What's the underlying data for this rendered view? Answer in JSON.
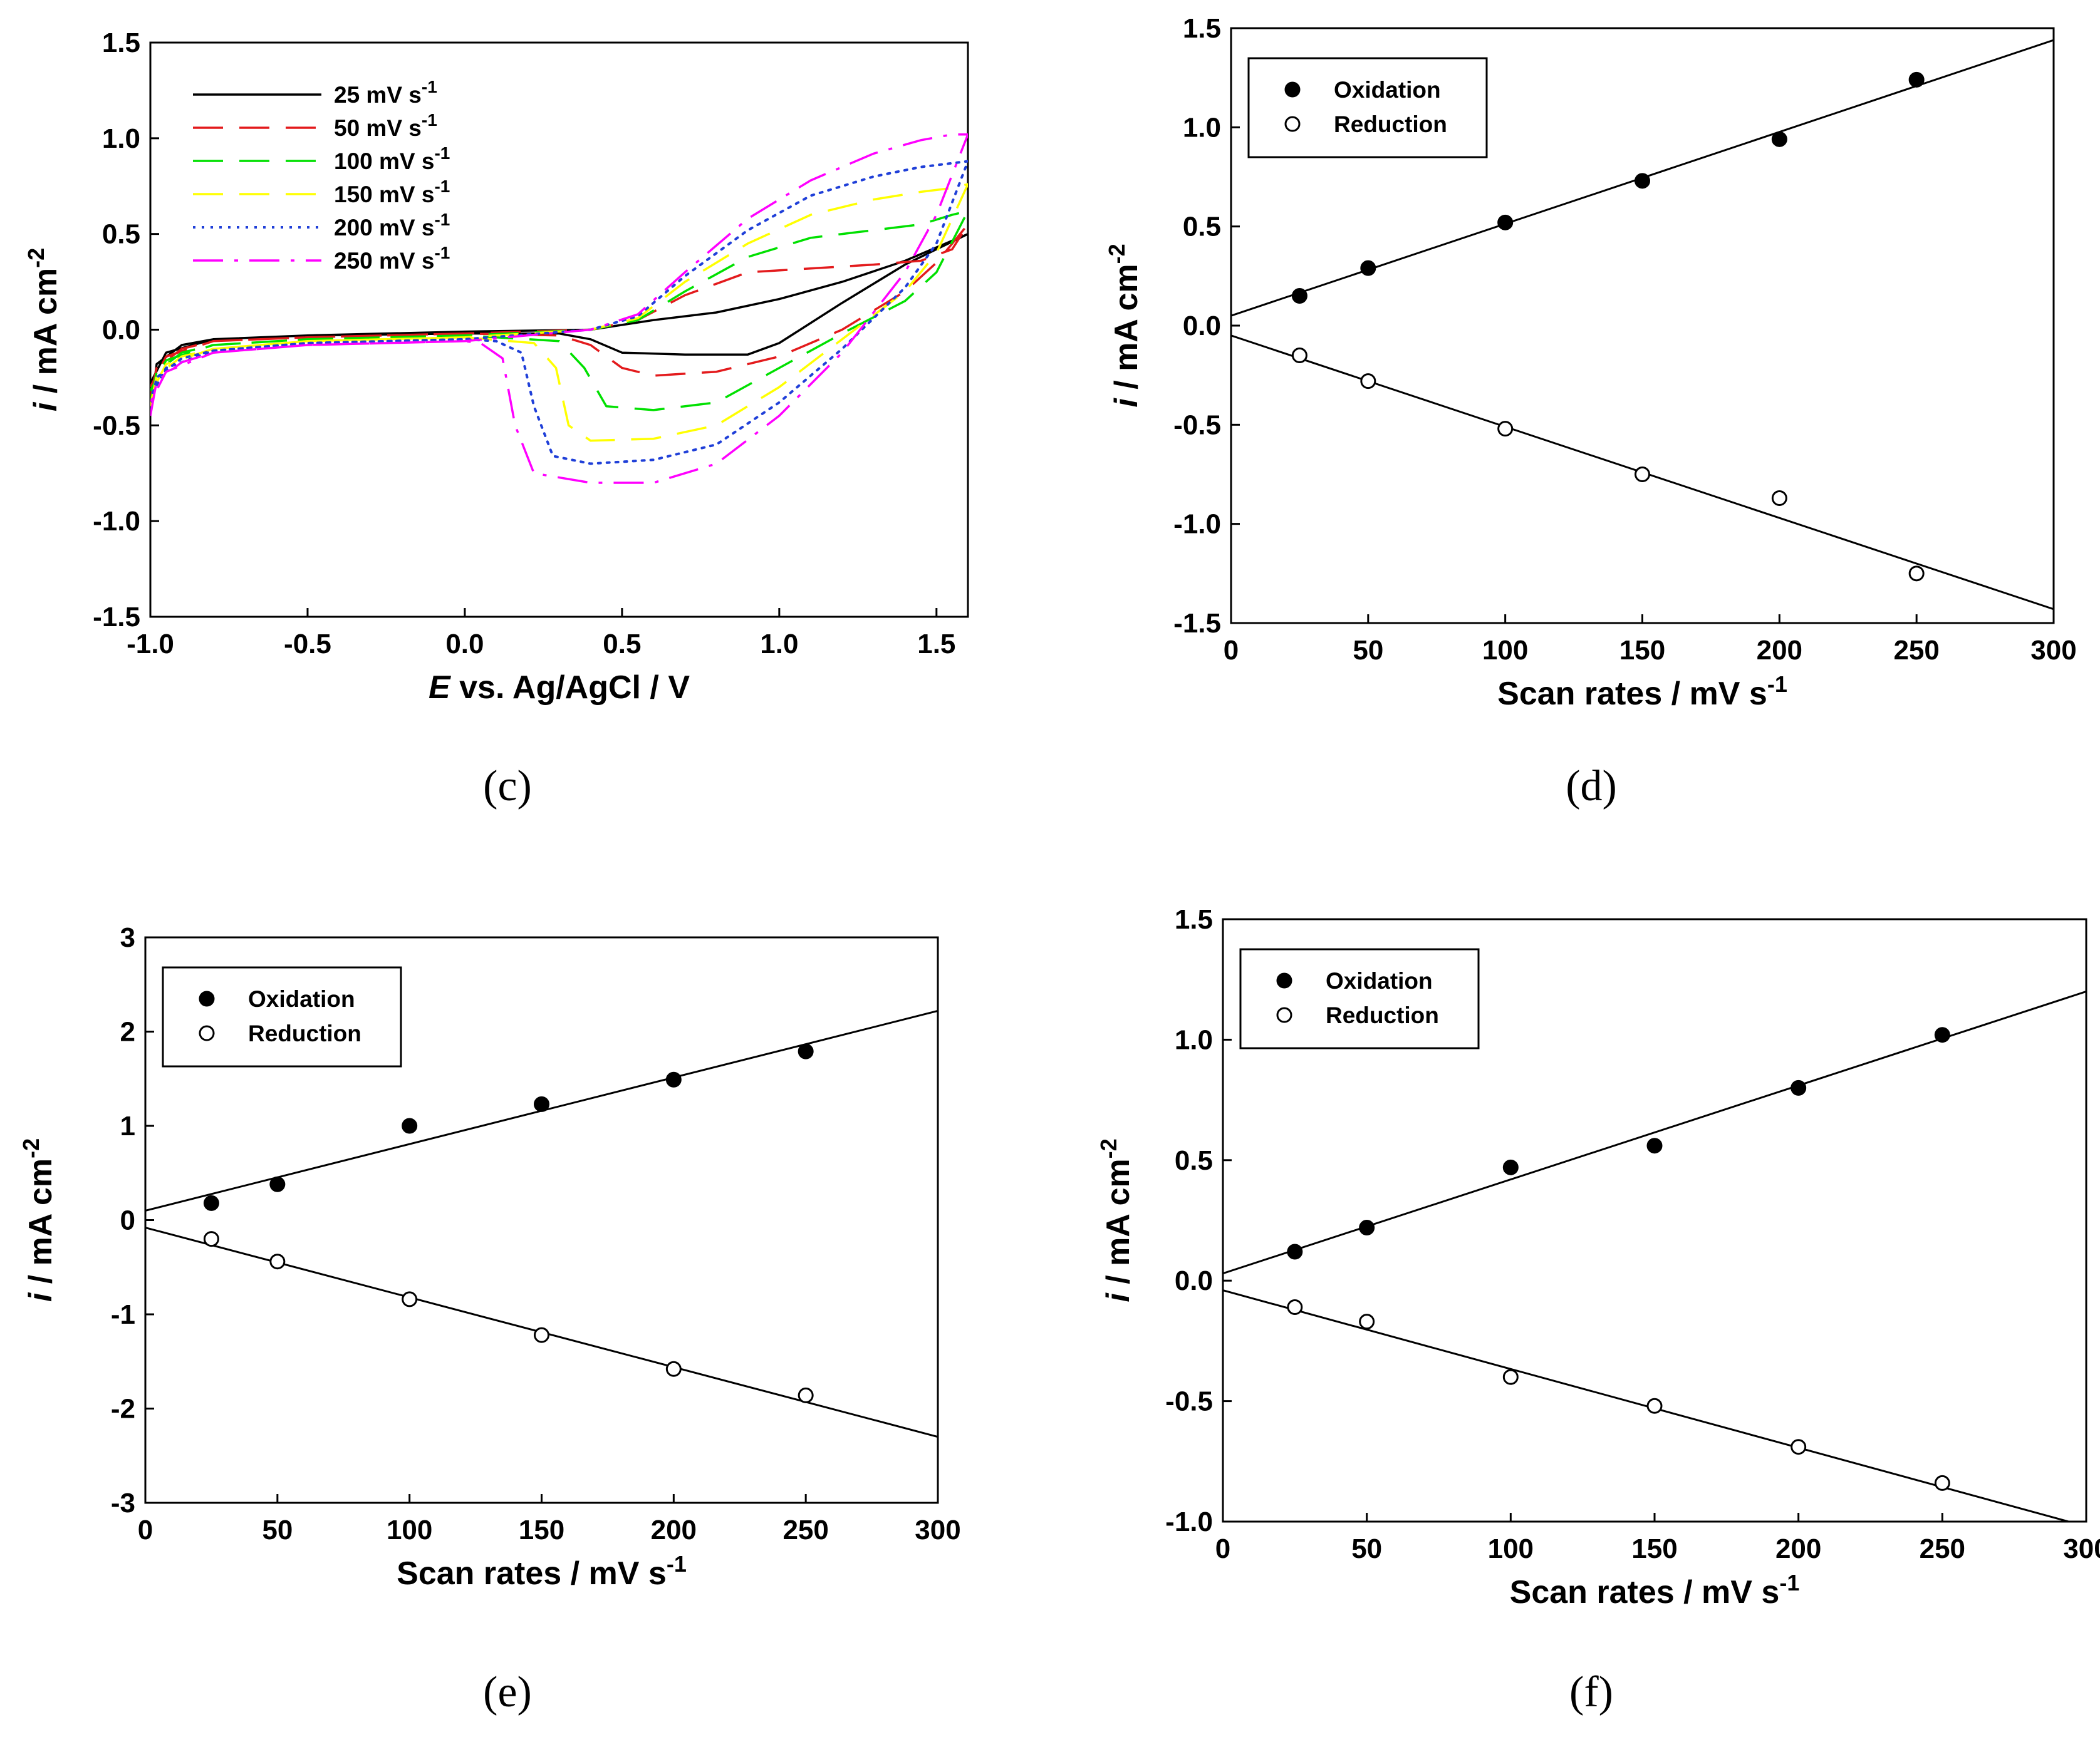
{
  "chart_data": [
    {
      "id": "c",
      "type": "line",
      "panel_label": "(c)",
      "title": "",
      "xlabel_italic": "E",
      "xlabel_rest": " vs. Ag/AgCl / V",
      "ylabel_italic": "i",
      "ylabel_rest": " / mA cm",
      "ylabel_sup": "-2",
      "xlim": [
        -1.0,
        1.6
      ],
      "ylim": [
        -1.5,
        1.5
      ],
      "xticks": [
        "-1.0",
        "-0.5",
        "0.0",
        "0.5",
        "1.0",
        "1.5"
      ],
      "yticks": [
        "-1.5",
        "-1.0",
        "-0.5",
        "0.0",
        "0.5",
        "1.0",
        "1.5"
      ],
      "legend_position": "top-left",
      "series": [
        {
          "name": "25 mV s",
          "sup": "-1",
          "color": "#000000",
          "dash": "solid",
          "forward": [
            [
              -1.0,
              -0.45
            ],
            [
              -0.98,
              -0.18
            ],
            [
              -0.9,
              -0.08
            ],
            [
              -0.8,
              -0.05
            ],
            [
              -0.5,
              -0.03
            ],
            [
              0.0,
              -0.01
            ],
            [
              0.4,
              0.0
            ],
            [
              0.6,
              0.05
            ],
            [
              0.8,
              0.09
            ],
            [
              1.0,
              0.16
            ],
            [
              1.2,
              0.25
            ],
            [
              1.4,
              0.36
            ],
            [
              1.6,
              0.5
            ]
          ],
          "reverse": [
            [
              1.6,
              0.52
            ],
            [
              1.5,
              0.42
            ],
            [
              1.4,
              0.34
            ],
            [
              1.2,
              0.14
            ],
            [
              1.0,
              -0.07
            ],
            [
              0.9,
              -0.13
            ],
            [
              0.7,
              -0.13
            ],
            [
              0.5,
              -0.12
            ],
            [
              0.4,
              -0.05
            ],
            [
              0.3,
              -0.02
            ],
            [
              0.0,
              -0.02
            ],
            [
              -0.5,
              -0.03
            ],
            [
              -0.8,
              -0.05
            ],
            [
              -0.95,
              -0.12
            ],
            [
              -1.0,
              -0.28
            ]
          ]
        },
        {
          "name": "50 mV s",
          "sup": "-1",
          "color": "#e31a1c",
          "dash": "long",
          "forward": [
            [
              -1.0,
              -0.35
            ],
            [
              -0.98,
              -0.2
            ],
            [
              -0.9,
              -0.1
            ],
            [
              -0.8,
              -0.06
            ],
            [
              -0.5,
              -0.04
            ],
            [
              0.0,
              -0.02
            ],
            [
              0.4,
              0.0
            ],
            [
              0.55,
              0.05
            ],
            [
              0.7,
              0.18
            ],
            [
              0.9,
              0.3
            ],
            [
              1.1,
              0.32
            ],
            [
              1.3,
              0.34
            ],
            [
              1.45,
              0.36
            ],
            [
              1.55,
              0.42
            ],
            [
              1.6,
              0.55
            ]
          ],
          "reverse": [
            [
              1.6,
              0.55
            ],
            [
              1.5,
              0.35
            ],
            [
              1.4,
              0.2
            ],
            [
              1.2,
              0.0
            ],
            [
              1.0,
              -0.14
            ],
            [
              0.8,
              -0.22
            ],
            [
              0.6,
              -0.24
            ],
            [
              0.5,
              -0.2
            ],
            [
              0.4,
              -0.08
            ],
            [
              0.3,
              -0.03
            ],
            [
              0.0,
              -0.02
            ],
            [
              -0.5,
              -0.04
            ],
            [
              -0.8,
              -0.06
            ],
            [
              -0.95,
              -0.14
            ],
            [
              -1.0,
              -0.3
            ]
          ]
        },
        {
          "name": "100 mV s",
          "sup": "-1",
          "color": "#00e000",
          "dash": "long",
          "forward": [
            [
              -1.0,
              -0.38
            ],
            [
              -0.98,
              -0.22
            ],
            [
              -0.9,
              -0.12
            ],
            [
              -0.8,
              -0.08
            ],
            [
              -0.5,
              -0.05
            ],
            [
              0.0,
              -0.03
            ],
            [
              0.4,
              0.0
            ],
            [
              0.55,
              0.05
            ],
            [
              0.7,
              0.2
            ],
            [
              0.9,
              0.38
            ],
            [
              1.1,
              0.48
            ],
            [
              1.3,
              0.52
            ],
            [
              1.45,
              0.55
            ],
            [
              1.55,
              0.6
            ],
            [
              1.6,
              0.62
            ]
          ],
          "reverse": [
            [
              1.6,
              0.62
            ],
            [
              1.5,
              0.3
            ],
            [
              1.4,
              0.15
            ],
            [
              1.2,
              -0.02
            ],
            [
              1.0,
              -0.2
            ],
            [
              0.8,
              -0.38
            ],
            [
              0.6,
              -0.42
            ],
            [
              0.45,
              -0.4
            ],
            [
              0.38,
              -0.2
            ],
            [
              0.3,
              -0.06
            ],
            [
              0.0,
              -0.03
            ],
            [
              -0.5,
              -0.05
            ],
            [
              -0.8,
              -0.08
            ],
            [
              -0.95,
              -0.16
            ],
            [
              -1.0,
              -0.32
            ]
          ]
        },
        {
          "name": "150 mV s",
          "sup": "-1",
          "color": "#ffff00",
          "dash": "long",
          "forward": [
            [
              -1.0,
              -0.4
            ],
            [
              -0.98,
              -0.24
            ],
            [
              -0.9,
              -0.14
            ],
            [
              -0.8,
              -0.1
            ],
            [
              -0.5,
              -0.06
            ],
            [
              0.0,
              -0.04
            ],
            [
              0.4,
              0.0
            ],
            [
              0.55,
              0.06
            ],
            [
              0.7,
              0.25
            ],
            [
              0.9,
              0.45
            ],
            [
              1.1,
              0.6
            ],
            [
              1.3,
              0.68
            ],
            [
              1.45,
              0.72
            ],
            [
              1.55,
              0.74
            ],
            [
              1.6,
              0.76
            ]
          ],
          "reverse": [
            [
              1.6,
              0.76
            ],
            [
              1.5,
              0.4
            ],
            [
              1.4,
              0.2
            ],
            [
              1.2,
              -0.05
            ],
            [
              1.0,
              -0.3
            ],
            [
              0.8,
              -0.5
            ],
            [
              0.6,
              -0.57
            ],
            [
              0.4,
              -0.58
            ],
            [
              0.33,
              -0.5
            ],
            [
              0.29,
              -0.2
            ],
            [
              0.22,
              -0.07
            ],
            [
              0.0,
              -0.04
            ],
            [
              -0.5,
              -0.06
            ],
            [
              -0.8,
              -0.1
            ],
            [
              -0.95,
              -0.18
            ],
            [
              -1.0,
              -0.34
            ]
          ]
        },
        {
          "name": "200 mV s",
          "sup": "-1",
          "color": "#1f3fd8",
          "dash": "dot",
          "forward": [
            [
              -1.0,
              -0.42
            ],
            [
              -0.98,
              -0.25
            ],
            [
              -0.9,
              -0.15
            ],
            [
              -0.8,
              -0.11
            ],
            [
              -0.5,
              -0.07
            ],
            [
              0.0,
              -0.05
            ],
            [
              0.4,
              0.0
            ],
            [
              0.55,
              0.07
            ],
            [
              0.7,
              0.28
            ],
            [
              0.9,
              0.52
            ],
            [
              1.1,
              0.7
            ],
            [
              1.3,
              0.8
            ],
            [
              1.45,
              0.85
            ],
            [
              1.55,
              0.87
            ],
            [
              1.6,
              0.88
            ]
          ],
          "reverse": [
            [
              1.6,
              0.88
            ],
            [
              1.5,
              0.45
            ],
            [
              1.4,
              0.22
            ],
            [
              1.2,
              -0.1
            ],
            [
              1.0,
              -0.38
            ],
            [
              0.8,
              -0.6
            ],
            [
              0.6,
              -0.68
            ],
            [
              0.4,
              -0.7
            ],
            [
              0.28,
              -0.66
            ],
            [
              0.22,
              -0.4
            ],
            [
              0.18,
              -0.12
            ],
            [
              0.1,
              -0.06
            ],
            [
              0.0,
              -0.05
            ],
            [
              -0.5,
              -0.07
            ],
            [
              -0.8,
              -0.11
            ],
            [
              -0.95,
              -0.2
            ],
            [
              -1.0,
              -0.35
            ]
          ]
        },
        {
          "name": "250 mV s",
          "sup": "-1",
          "color": "#ff00ff",
          "dash": "dashdot",
          "forward": [
            [
              -1.0,
              -0.45
            ],
            [
              -0.98,
              -0.27
            ],
            [
              -0.9,
              -0.17
            ],
            [
              -0.8,
              -0.12
            ],
            [
              -0.5,
              -0.08
            ],
            [
              0.0,
              -0.06
            ],
            [
              0.4,
              0.0
            ],
            [
              0.55,
              0.08
            ],
            [
              0.7,
              0.3
            ],
            [
              0.9,
              0.58
            ],
            [
              1.1,
              0.78
            ],
            [
              1.3,
              0.92
            ],
            [
              1.45,
              0.99
            ],
            [
              1.55,
              1.02
            ],
            [
              1.6,
              1.02
            ]
          ],
          "reverse": [
            [
              1.6,
              1.02
            ],
            [
              1.5,
              0.6
            ],
            [
              1.4,
              0.3
            ],
            [
              1.2,
              -0.12
            ],
            [
              1.0,
              -0.45
            ],
            [
              0.8,
              -0.7
            ],
            [
              0.6,
              -0.8
            ],
            [
              0.4,
              -0.8
            ],
            [
              0.22,
              -0.75
            ],
            [
              0.16,
              -0.5
            ],
            [
              0.12,
              -0.15
            ],
            [
              0.05,
              -0.07
            ],
            [
              0.0,
              -0.06
            ],
            [
              -0.5,
              -0.08
            ],
            [
              -0.8,
              -0.12
            ],
            [
              -0.95,
              -0.22
            ],
            [
              -1.0,
              -0.38
            ]
          ]
        }
      ]
    },
    {
      "id": "d",
      "type": "scatter",
      "panel_label": "(d)",
      "title": "",
      "xlabel": "Scan rates / mV s",
      "xlabel_sup": "-1",
      "ylabel_italic": "i",
      "ylabel_rest": " / mA cm",
      "ylabel_sup": "-2",
      "xlim": [
        0,
        300
      ],
      "ylim": [
        -1.5,
        1.5
      ],
      "xticks": [
        "0",
        "50",
        "100",
        "150",
        "200",
        "250",
        "300"
      ],
      "yticks": [
        "-1.5",
        "-1.0",
        "-0.5",
        "0.0",
        "0.5",
        "1.0",
        "1.5"
      ],
      "legend_position": "top-left",
      "series": [
        {
          "name": "Oxidation",
          "marker": "filled-circle",
          "x": [
            25,
            50,
            100,
            150,
            200,
            250
          ],
          "y": [
            0.15,
            0.29,
            0.52,
            0.73,
            0.94,
            1.24
          ],
          "fit": [
            [
              0,
              0.05
            ],
            [
              300,
              1.44
            ]
          ]
        },
        {
          "name": "Reduction",
          "marker": "open-circle",
          "x": [
            25,
            50,
            100,
            150,
            200,
            250
          ],
          "y": [
            -0.15,
            -0.28,
            -0.52,
            -0.75,
            -0.87,
            -1.25
          ],
          "fit": [
            [
              0,
              -0.05
            ],
            [
              300,
              -1.43
            ]
          ]
        }
      ]
    },
    {
      "id": "e",
      "type": "scatter",
      "panel_label": "(e)",
      "title": "",
      "xlabel": "Scan rates / mV s",
      "xlabel_sup": "-1",
      "ylabel_italic": "i",
      "ylabel_rest": " / mA cm",
      "ylabel_sup": "-2",
      "xlim": [
        0,
        300
      ],
      "ylim": [
        -3,
        3
      ],
      "xticks": [
        "0",
        "50",
        "100",
        "150",
        "200",
        "250",
        "300"
      ],
      "yticks": [
        "-3",
        "-2",
        "-1",
        "0",
        "1",
        "2",
        "3"
      ],
      "legend_position": "top-left",
      "series": [
        {
          "name": "Oxidation",
          "marker": "filled-circle",
          "x": [
            25,
            50,
            100,
            150,
            200,
            250
          ],
          "y": [
            0.18,
            0.38,
            1.0,
            1.23,
            1.49,
            1.79
          ],
          "fit": [
            [
              0,
              0.1
            ],
            [
              300,
              2.22
            ]
          ]
        },
        {
          "name": "Reduction",
          "marker": "open-circle",
          "x": [
            25,
            50,
            100,
            150,
            200,
            250
          ],
          "y": [
            -0.2,
            -0.44,
            -0.84,
            -1.22,
            -1.58,
            -1.86
          ],
          "fit": [
            [
              0,
              -0.08
            ],
            [
              300,
              -2.3
            ]
          ]
        }
      ]
    },
    {
      "id": "f",
      "type": "scatter",
      "panel_label": "(f)",
      "title": "",
      "xlabel": "Scan rates / mV s",
      "xlabel_sup": "-1",
      "ylabel_italic": "i",
      "ylabel_rest": " / mA cm",
      "ylabel_sup": "-2",
      "xlim": [
        0,
        300
      ],
      "ylim": [
        -1.0,
        1.5
      ],
      "xticks": [
        "0",
        "50",
        "100",
        "150",
        "200",
        "250",
        "300"
      ],
      "yticks": [
        "-1.0",
        "-0.5",
        "0.0",
        "0.5",
        "1.0",
        "1.5"
      ],
      "legend_position": "top-left",
      "series": [
        {
          "name": "Oxidation",
          "marker": "filled-circle",
          "x": [
            25,
            50,
            100,
            150,
            200,
            250
          ],
          "y": [
            0.12,
            0.22,
            0.47,
            0.56,
            0.8,
            1.02
          ],
          "fit": [
            [
              0,
              0.03
            ],
            [
              300,
              1.2
            ]
          ]
        },
        {
          "name": "Reduction",
          "marker": "open-circle",
          "x": [
            25,
            50,
            100,
            150,
            200,
            250
          ],
          "y": [
            -0.11,
            -0.17,
            -0.4,
            -0.52,
            -0.69,
            -0.84
          ],
          "fit": [
            [
              0,
              -0.04
            ],
            [
              300,
              -1.02
            ]
          ]
        }
      ]
    }
  ]
}
